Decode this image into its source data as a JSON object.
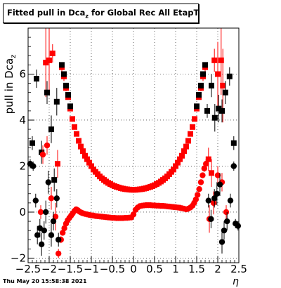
{
  "title": {
    "main": "Fitted pull in Dca",
    "sub": "z",
    "rest": " for Global Rec All EtapT"
  },
  "footer": "Thu May 20 15:58:38 2021",
  "chart_data": {
    "type": "scatter",
    "title": "Fitted pull in Dca_z for Global Rec All EtapT",
    "xlabel": "η",
    "ylabel": "pull in Dca_z",
    "ylabel_main": "pull in Dca",
    "ylabel_sub": "z",
    "xlim": [
      -2.5,
      2.5
    ],
    "ylim": [
      -2.2,
      8.0
    ],
    "xticks": [
      -2.5,
      -2,
      -1.5,
      -1,
      -0.5,
      0,
      0.5,
      1,
      1.5,
      2,
      2.5
    ],
    "xtick_labels": [
      "−2.5",
      "−2",
      "−1.5",
      "−1",
      "−0.5",
      "0",
      "0.5",
      "1",
      "1.5",
      "2",
      "2.5"
    ],
    "yticks": [
      -2,
      0,
      2,
      4,
      6
    ],
    "ytick_labels": [
      "−2",
      "0",
      "2",
      "4",
      "6"
    ],
    "grid": true,
    "series": [
      {
        "name": "",
        "color": "#ff0000",
        "marker": "square",
        "points": [
          [
            -2.08,
            6.5,
            1.5
          ],
          [
            -2.0,
            6.6,
            1.4
          ],
          [
            -1.92,
            6.9,
            0.4
          ],
          [
            -1.8,
            2.1,
            0.6
          ],
          [
            -1.7,
            6.3,
            0.2
          ],
          [
            -1.65,
            5.9,
            0.2
          ],
          [
            -1.6,
            5.4,
            0.15
          ],
          [
            -1.55,
            5.0,
            0.1
          ],
          [
            -1.5,
            4.5,
            0.1
          ],
          [
            -1.45,
            4.05,
            0.08
          ],
          [
            -1.4,
            3.7,
            0.06
          ],
          [
            -1.35,
            3.4,
            0.05
          ],
          [
            -1.3,
            3.1,
            0.05
          ],
          [
            -1.25,
            2.85,
            0.04
          ],
          [
            -1.2,
            2.65,
            0.04
          ],
          [
            -1.15,
            2.45,
            0.04
          ],
          [
            -1.1,
            2.3,
            0.03
          ],
          [
            -1.05,
            2.15,
            0.03
          ],
          [
            -1.0,
            2.0,
            0.03
          ],
          [
            -0.95,
            1.85,
            0.03
          ],
          [
            -0.9,
            1.75,
            0.03
          ],
          [
            -0.85,
            1.65,
            0.03
          ],
          [
            -0.8,
            1.55,
            0.03
          ],
          [
            -0.75,
            1.47,
            0.03
          ],
          [
            -0.7,
            1.4,
            0.03
          ],
          [
            -0.65,
            1.33,
            0.03
          ],
          [
            -0.6,
            1.27,
            0.03
          ],
          [
            -0.55,
            1.22,
            0.03
          ],
          [
            -0.5,
            1.17,
            0.03
          ],
          [
            -0.45,
            1.13,
            0.03
          ],
          [
            -0.4,
            1.1,
            0.03
          ],
          [
            -0.35,
            1.07,
            0.03
          ],
          [
            -0.3,
            1.04,
            0.03
          ],
          [
            -0.25,
            1.02,
            0.03
          ],
          [
            -0.2,
            1.0,
            0.03
          ],
          [
            -0.15,
            0.99,
            0.03
          ],
          [
            -0.1,
            0.98,
            0.03
          ],
          [
            -0.05,
            0.97,
            0.03
          ],
          [
            0.0,
            0.97,
            0.03
          ],
          [
            0.05,
            0.97,
            0.03
          ],
          [
            0.1,
            0.98,
            0.03
          ],
          [
            0.15,
            0.99,
            0.03
          ],
          [
            0.2,
            1.0,
            0.03
          ],
          [
            0.25,
            1.02,
            0.03
          ],
          [
            0.3,
            1.04,
            0.03
          ],
          [
            0.35,
            1.07,
            0.03
          ],
          [
            0.4,
            1.1,
            0.03
          ],
          [
            0.45,
            1.13,
            0.03
          ],
          [
            0.5,
            1.17,
            0.03
          ],
          [
            0.55,
            1.22,
            0.03
          ],
          [
            0.6,
            1.27,
            0.03
          ],
          [
            0.65,
            1.33,
            0.03
          ],
          [
            0.7,
            1.4,
            0.03
          ],
          [
            0.75,
            1.47,
            0.03
          ],
          [
            0.8,
            1.55,
            0.03
          ],
          [
            0.85,
            1.65,
            0.03
          ],
          [
            0.9,
            1.75,
            0.03
          ],
          [
            0.95,
            1.85,
            0.03
          ],
          [
            1.0,
            2.0,
            0.03
          ],
          [
            1.05,
            2.15,
            0.03
          ],
          [
            1.1,
            2.3,
            0.03
          ],
          [
            1.15,
            2.45,
            0.04
          ],
          [
            1.2,
            2.65,
            0.04
          ],
          [
            1.25,
            2.85,
            0.04
          ],
          [
            1.3,
            3.1,
            0.05
          ],
          [
            1.35,
            3.4,
            0.05
          ],
          [
            1.4,
            3.7,
            0.06
          ],
          [
            1.45,
            4.05,
            0.08
          ],
          [
            1.5,
            4.5,
            0.1
          ],
          [
            1.55,
            5.0,
            0.1
          ],
          [
            1.6,
            5.4,
            0.15
          ],
          [
            1.65,
            5.9,
            0.2
          ],
          [
            1.7,
            6.3,
            0.2
          ],
          [
            1.78,
            2.3,
            0.5
          ],
          [
            1.85,
            1.7,
            0.6
          ],
          [
            1.92,
            6.6,
            0.5
          ],
          [
            2.0,
            6.0,
            1.4
          ],
          [
            2.08,
            6.6,
            1.5
          ],
          [
            2.12,
            5.5,
            1.6
          ]
        ]
      },
      {
        "name": "",
        "color": "#000000",
        "marker": "square",
        "points": [
          [
            -2.4,
            3.0,
            0.3
          ],
          [
            -2.3,
            5.8,
            0.4
          ],
          [
            -2.18,
            2.6,
            0.5
          ],
          [
            -2.05,
            5.2,
            0.5
          ],
          [
            -1.95,
            3.6,
            0.6
          ],
          [
            -1.88,
            1.4,
            0.5
          ],
          [
            -1.82,
            4.8,
            0.6
          ],
          [
            -1.7,
            6.4,
            0.1
          ],
          [
            -1.65,
            6.0,
            0.1
          ],
          [
            -1.6,
            5.5,
            0.1
          ],
          [
            -1.55,
            5.1,
            0.1
          ],
          [
            -1.5,
            4.6,
            0.1
          ],
          [
            1.5,
            4.6,
            0.1
          ],
          [
            1.55,
            5.1,
            0.1
          ],
          [
            1.6,
            5.5,
            0.1
          ],
          [
            1.65,
            6.0,
            0.1
          ],
          [
            1.7,
            6.4,
            0.1
          ],
          [
            1.75,
            4.4,
            0.3
          ],
          [
            1.85,
            5.5,
            0.5
          ],
          [
            1.93,
            4.1,
            0.6
          ],
          [
            2.02,
            4.5,
            0.6
          ],
          [
            2.1,
            4.4,
            0.5
          ],
          [
            2.18,
            5.2,
            0.5
          ],
          [
            2.28,
            5.9,
            0.4
          ],
          [
            2.38,
            3.0,
            0.3
          ]
        ]
      },
      {
        "name": "",
        "color": "#ff0000",
        "marker": "circle",
        "points": [
          [
            -2.2,
            0.0,
            0.3
          ],
          [
            -2.15,
            2.5,
            0.4
          ],
          [
            -2.05,
            2.9,
            0.4
          ],
          [
            -1.95,
            0.6,
            0.5
          ],
          [
            -1.85,
            -0.2,
            0.6
          ],
          [
            -1.78,
            -1.8,
            0.2
          ],
          [
            -1.72,
            -1.2,
            0.15
          ],
          [
            -1.68,
            -0.9,
            0.1
          ],
          [
            -1.64,
            -0.7,
            0.08
          ],
          [
            -1.6,
            -0.5,
            0.06
          ],
          [
            -1.56,
            -0.35,
            0.05
          ],
          [
            -1.52,
            -0.25,
            0.04
          ],
          [
            -1.48,
            -0.15,
            0.04
          ],
          [
            -1.44,
            -0.05,
            0.03
          ],
          [
            -1.4,
            0.05,
            0.03
          ],
          [
            -1.36,
            0.12,
            0.03
          ],
          [
            -1.32,
            0.08,
            0.03
          ],
          [
            -1.28,
            0.02,
            0.03
          ],
          [
            -1.24,
            -0.02,
            0.03
          ],
          [
            -1.2,
            -0.05,
            0.03
          ],
          [
            -1.15,
            -0.08,
            0.03
          ],
          [
            -1.1,
            -0.1,
            0.03
          ],
          [
            -1.05,
            -0.12,
            0.03
          ],
          [
            -1.0,
            -0.14,
            0.03
          ],
          [
            -0.95,
            -0.15,
            0.03
          ],
          [
            -0.9,
            -0.17,
            0.03
          ],
          [
            -0.85,
            -0.18,
            0.03
          ],
          [
            -0.8,
            -0.19,
            0.03
          ],
          [
            -0.75,
            -0.2,
            0.03
          ],
          [
            -0.7,
            -0.21,
            0.03
          ],
          [
            -0.65,
            -0.22,
            0.03
          ],
          [
            -0.6,
            -0.23,
            0.03
          ],
          [
            -0.55,
            -0.24,
            0.03
          ],
          [
            -0.5,
            -0.25,
            0.03
          ],
          [
            -0.45,
            -0.25,
            0.03
          ],
          [
            -0.4,
            -0.26,
            0.03
          ],
          [
            -0.35,
            -0.26,
            0.03
          ],
          [
            -0.3,
            -0.26,
            0.03
          ],
          [
            -0.25,
            -0.26,
            0.03
          ],
          [
            -0.2,
            -0.25,
            0.03
          ],
          [
            -0.15,
            -0.25,
            0.03
          ],
          [
            -0.1,
            -0.24,
            0.03
          ],
          [
            -0.05,
            -0.23,
            0.03
          ],
          [
            0.0,
            -0.1,
            0.03
          ],
          [
            0.05,
            0.1,
            0.03
          ],
          [
            0.1,
            0.2,
            0.03
          ],
          [
            0.15,
            0.26,
            0.03
          ],
          [
            0.2,
            0.28,
            0.03
          ],
          [
            0.25,
            0.29,
            0.03
          ],
          [
            0.3,
            0.3,
            0.03
          ],
          [
            0.35,
            0.3,
            0.03
          ],
          [
            0.4,
            0.3,
            0.03
          ],
          [
            0.45,
            0.29,
            0.03
          ],
          [
            0.5,
            0.29,
            0.03
          ],
          [
            0.55,
            0.28,
            0.03
          ],
          [
            0.6,
            0.28,
            0.03
          ],
          [
            0.65,
            0.27,
            0.03
          ],
          [
            0.7,
            0.27,
            0.03
          ],
          [
            0.75,
            0.26,
            0.03
          ],
          [
            0.8,
            0.25,
            0.03
          ],
          [
            0.85,
            0.24,
            0.03
          ],
          [
            0.9,
            0.23,
            0.03
          ],
          [
            0.95,
            0.22,
            0.03
          ],
          [
            1.0,
            0.21,
            0.03
          ],
          [
            1.05,
            0.2,
            0.03
          ],
          [
            1.1,
            0.19,
            0.03
          ],
          [
            1.15,
            0.17,
            0.03
          ],
          [
            1.2,
            0.15,
            0.03
          ],
          [
            1.25,
            0.12,
            0.03
          ],
          [
            1.3,
            0.15,
            0.03
          ],
          [
            1.35,
            0.2,
            0.03
          ],
          [
            1.4,
            0.28,
            0.04
          ],
          [
            1.44,
            0.4,
            0.04
          ],
          [
            1.48,
            0.55,
            0.05
          ],
          [
            1.52,
            0.75,
            0.05
          ],
          [
            1.56,
            1.0,
            0.06
          ],
          [
            1.6,
            1.3,
            0.08
          ],
          [
            1.64,
            1.6,
            0.1
          ],
          [
            1.68,
            1.9,
            0.15
          ],
          [
            1.72,
            2.1,
            0.2
          ],
          [
            1.8,
            -0.3,
            0.6
          ],
          [
            1.9,
            0.4,
            0.5
          ],
          [
            2.0,
            1.6,
            0.4
          ],
          [
            2.1,
            1.3,
            0.4
          ],
          [
            2.2,
            0.0,
            0.3
          ]
        ]
      },
      {
        "name": "",
        "color": "#000000",
        "marker": "circle",
        "points": [
          [
            -2.45,
            2.1,
            0.2
          ],
          [
            -2.38,
            2.0,
            0.2
          ],
          [
            -2.32,
            0.5,
            0.3
          ],
          [
            -2.28,
            -1.0,
            0.4
          ],
          [
            -2.22,
            -0.7,
            0.4
          ],
          [
            -2.18,
            -1.4,
            0.5
          ],
          [
            -2.12,
            -0.8,
            0.4
          ],
          [
            -2.08,
            0.0,
            0.5
          ],
          [
            -2.02,
            1.3,
            0.5
          ],
          [
            -1.95,
            -1.0,
            0.5
          ],
          [
            -1.9,
            -0.4,
            0.4
          ],
          [
            -1.82,
            0.6,
            0.4
          ],
          [
            -1.78,
            -1.2,
            0.3
          ],
          [
            1.78,
            0.5,
            0.3
          ],
          [
            1.84,
            -0.3,
            0.4
          ],
          [
            1.92,
            0.6,
            0.4
          ],
          [
            1.98,
            0.8,
            0.5
          ],
          [
            2.05,
            1.2,
            0.5
          ],
          [
            2.1,
            -1.3,
            0.5
          ],
          [
            2.15,
            -0.8,
            0.4
          ],
          [
            2.22,
            -0.4,
            0.4
          ],
          [
            2.3,
            0.5,
            0.3
          ],
          [
            2.38,
            2.0,
            0.2
          ],
          [
            2.42,
            -0.5,
            0.2
          ],
          [
            2.48,
            -0.6,
            0.2
          ]
        ]
      }
    ]
  }
}
